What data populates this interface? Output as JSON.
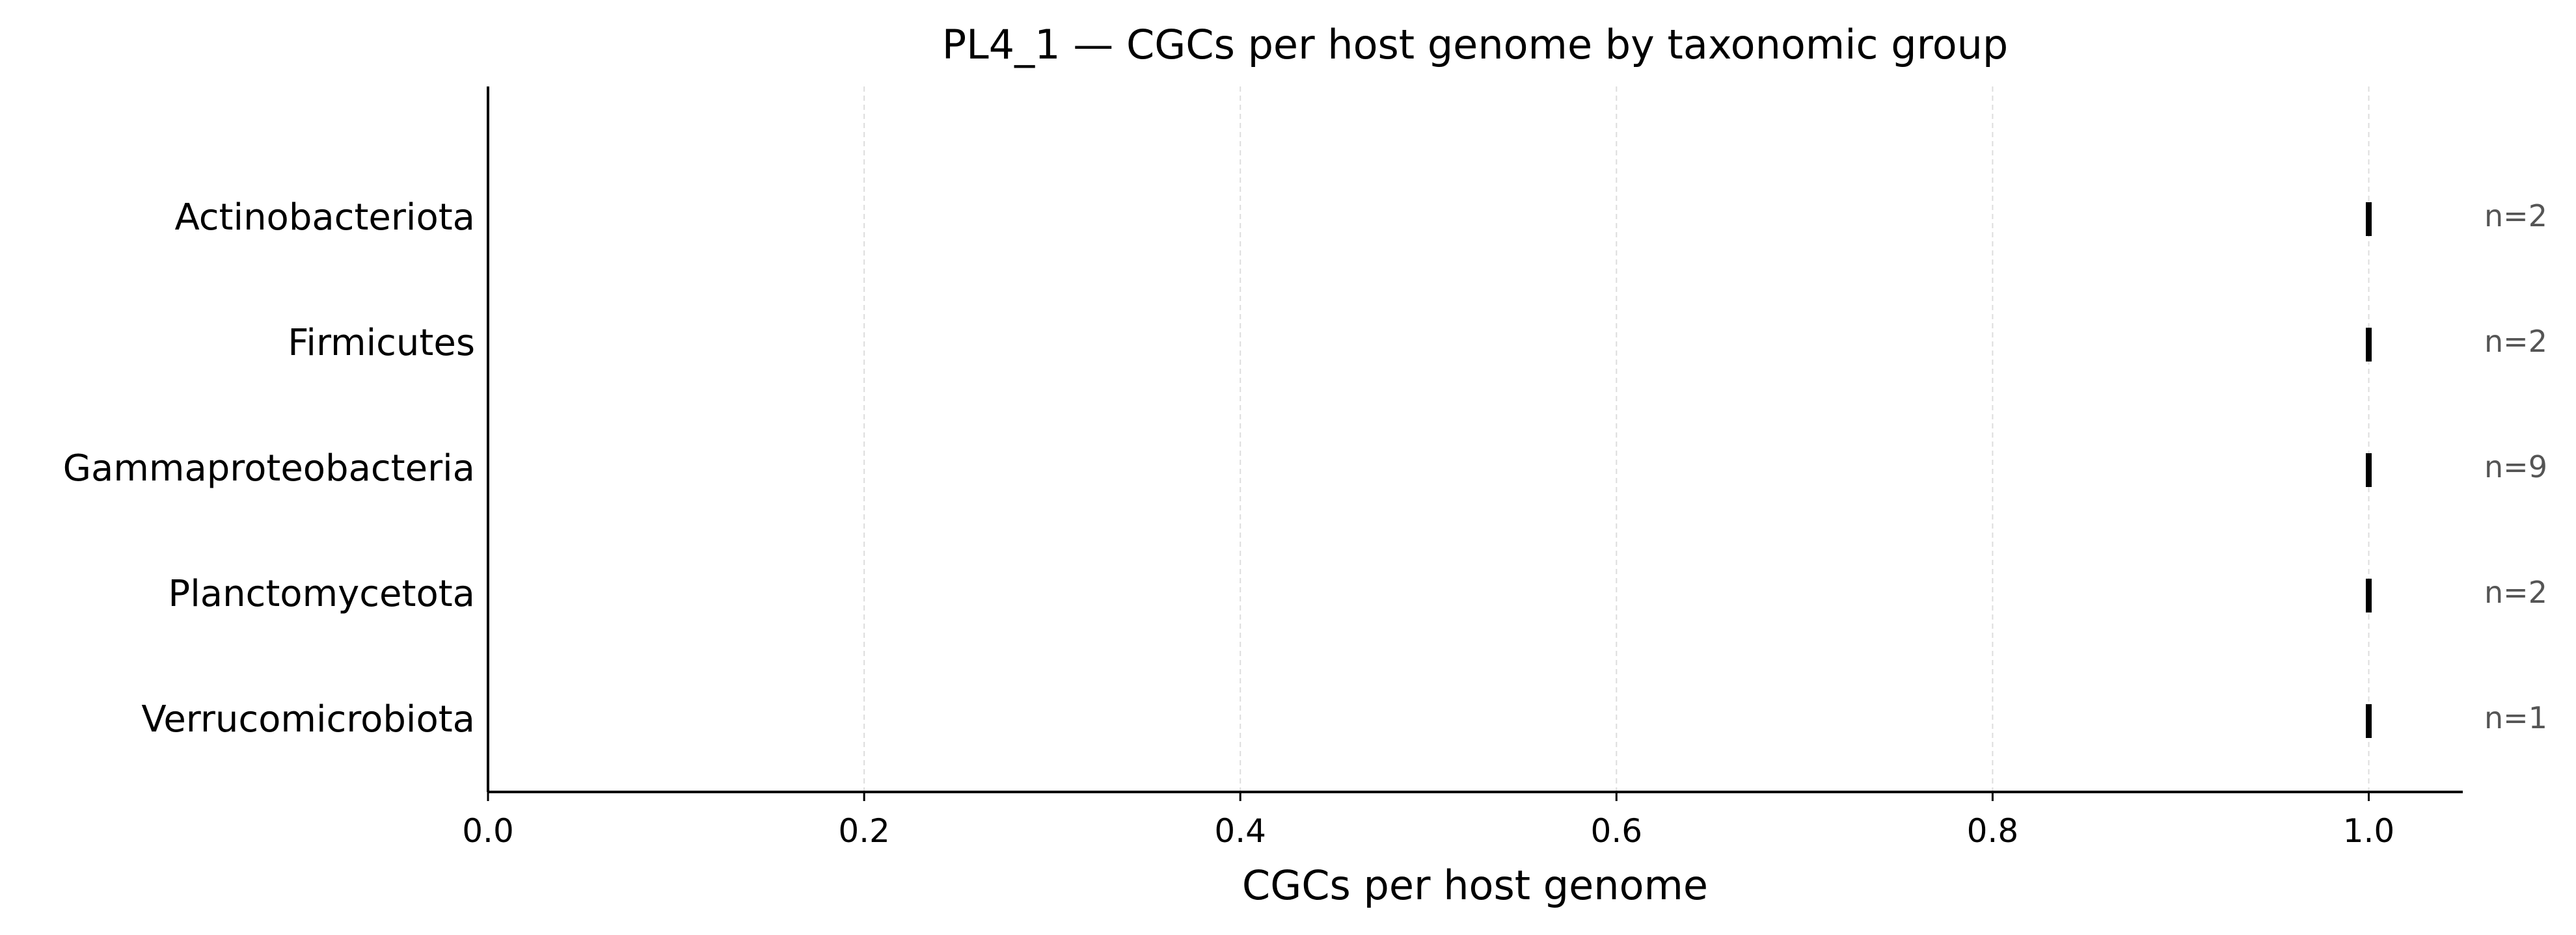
{
  "chart_data": {
    "type": "scatter",
    "title": "PL4_1 — CGCs per host genome by taxonomic group",
    "xlabel": "CGCs per host genome",
    "ylabel": "",
    "xlim": [
      0.0,
      1.05
    ],
    "xticks": [
      0.0,
      0.2,
      0.4,
      0.6,
      0.8,
      1.0
    ],
    "xtick_labels": [
      "0.0",
      "0.2",
      "0.4",
      "0.6",
      "0.8",
      "1.0"
    ],
    "grid": "vertical, light dashed",
    "categories": [
      "Actinobacteriota",
      "Firmicutes",
      "Gammaproteobacteria",
      "Planctomycetota",
      "Verrucomicrobiota"
    ],
    "values": [
      1.0,
      1.0,
      1.0,
      1.0,
      1.0
    ],
    "counts": [
      "n=2",
      "n=2",
      "n=9",
      "n=2",
      "n=1"
    ],
    "marker_color": "#000000",
    "count_color": "#555555",
    "grid_color": "#dddddd"
  }
}
